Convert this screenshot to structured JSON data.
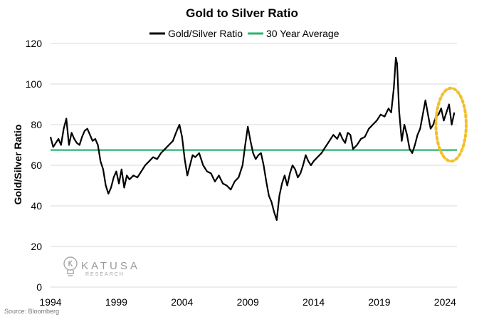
{
  "chart_data": {
    "type": "line",
    "title": "Gold to Silver Ratio",
    "xlabel": "",
    "ylabel": "Gold/Silver Ratio",
    "xlim": [
      1994,
      2024.9
    ],
    "ylim": [
      0,
      120
    ],
    "y_ticks": [
      0,
      20,
      40,
      60,
      80,
      100,
      120
    ],
    "x_ticks": [
      1994,
      1999,
      2004,
      2009,
      2014,
      2019,
      2024
    ],
    "x_tick_labels": [
      "1994",
      "1999",
      "2004",
      "2009",
      "2014",
      "2019",
      "2024"
    ],
    "grid": true,
    "legend_position": "top",
    "series": [
      {
        "name": "Gold/Silver Ratio",
        "color": "#000000",
        "x": [
          1994.0,
          1994.2,
          1994.4,
          1994.6,
          1994.8,
          1995.0,
          1995.2,
          1995.4,
          1995.6,
          1995.8,
          1996.0,
          1996.2,
          1996.4,
          1996.6,
          1996.8,
          1997.0,
          1997.2,
          1997.4,
          1997.6,
          1997.8,
          1998.0,
          1998.2,
          1998.4,
          1998.6,
          1998.8,
          1999.0,
          1999.2,
          1999.4,
          1999.6,
          1999.8,
          2000.0,
          2000.3,
          2000.6,
          2000.9,
          2001.2,
          2001.5,
          2001.8,
          2002.1,
          2002.4,
          2002.7,
          2003.0,
          2003.3,
          2003.6,
          2003.8,
          2004.0,
          2004.2,
          2004.4,
          2004.6,
          2004.8,
          2005.0,
          2005.3,
          2005.6,
          2005.9,
          2006.2,
          2006.5,
          2006.8,
          2007.1,
          2007.4,
          2007.7,
          2008.0,
          2008.3,
          2008.6,
          2008.8,
          2009.0,
          2009.2,
          2009.4,
          2009.6,
          2009.8,
          2010.0,
          2010.2,
          2010.4,
          2010.6,
          2010.8,
          2011.0,
          2011.2,
          2011.4,
          2011.6,
          2011.8,
          2012.0,
          2012.2,
          2012.4,
          2012.6,
          2012.8,
          2013.0,
          2013.2,
          2013.4,
          2013.6,
          2013.8,
          2014.0,
          2014.3,
          2014.6,
          2014.9,
          2015.2,
          2015.5,
          2015.8,
          2016.0,
          2016.2,
          2016.4,
          2016.6,
          2016.8,
          2017.0,
          2017.3,
          2017.6,
          2017.9,
          2018.2,
          2018.5,
          2018.8,
          2019.1,
          2019.4,
          2019.7,
          2019.9,
          2020.1,
          2020.25,
          2020.35,
          2020.5,
          2020.7,
          2020.9,
          2021.1,
          2021.3,
          2021.5,
          2021.7,
          2021.9,
          2022.1,
          2022.3,
          2022.5,
          2022.7,
          2022.9,
          2023.1,
          2023.3,
          2023.5,
          2023.7,
          2023.9,
          2024.1,
          2024.3,
          2024.5,
          2024.7
        ],
        "y": [
          74,
          69,
          71,
          73,
          70,
          78,
          83,
          70,
          76,
          73,
          71,
          70,
          74,
          77,
          78,
          75,
          72,
          73,
          70,
          62,
          58,
          50,
          46,
          49,
          54,
          57,
          51,
          58,
          49,
          55,
          53,
          55,
          54,
          57,
          60,
          62,
          64,
          63,
          66,
          68,
          70,
          72,
          77,
          80,
          74,
          63,
          55,
          60,
          65,
          64,
          66,
          60,
          57,
          56,
          52,
          55,
          51,
          50,
          48,
          52,
          54,
          60,
          70,
          79,
          72,
          66,
          63,
          65,
          66,
          60,
          52,
          45,
          42,
          37,
          33,
          45,
          51,
          55,
          50,
          56,
          60,
          58,
          54,
          56,
          60,
          65,
          62,
          60,
          62,
          64,
          66,
          69,
          72,
          75,
          73,
          76,
          73,
          71,
          76,
          75,
          68,
          70,
          73,
          74,
          78,
          80,
          82,
          85,
          84,
          88,
          86,
          98,
          113,
          110,
          87,
          72,
          80,
          75,
          68,
          66,
          70,
          75,
          78,
          85,
          92,
          85,
          78,
          80,
          84,
          85,
          88,
          82,
          86,
          90,
          80,
          86
        ]
      },
      {
        "name": "30 Year Average",
        "color": "#2db36f",
        "x": [
          1994,
          2024.9
        ],
        "y": [
          67.5,
          67.5
        ]
      }
    ],
    "annotations": [
      {
        "type": "ellipse",
        "style": "dotted",
        "color": "#f2c02a",
        "center_x": 2024.45,
        "center_y": 80,
        "rx_years": 1.15,
        "ry_units": 18
      }
    ]
  },
  "watermark": {
    "brand": "KATUSA",
    "sub": "RESEARCH"
  },
  "source_note": "Source: Bloomberg"
}
